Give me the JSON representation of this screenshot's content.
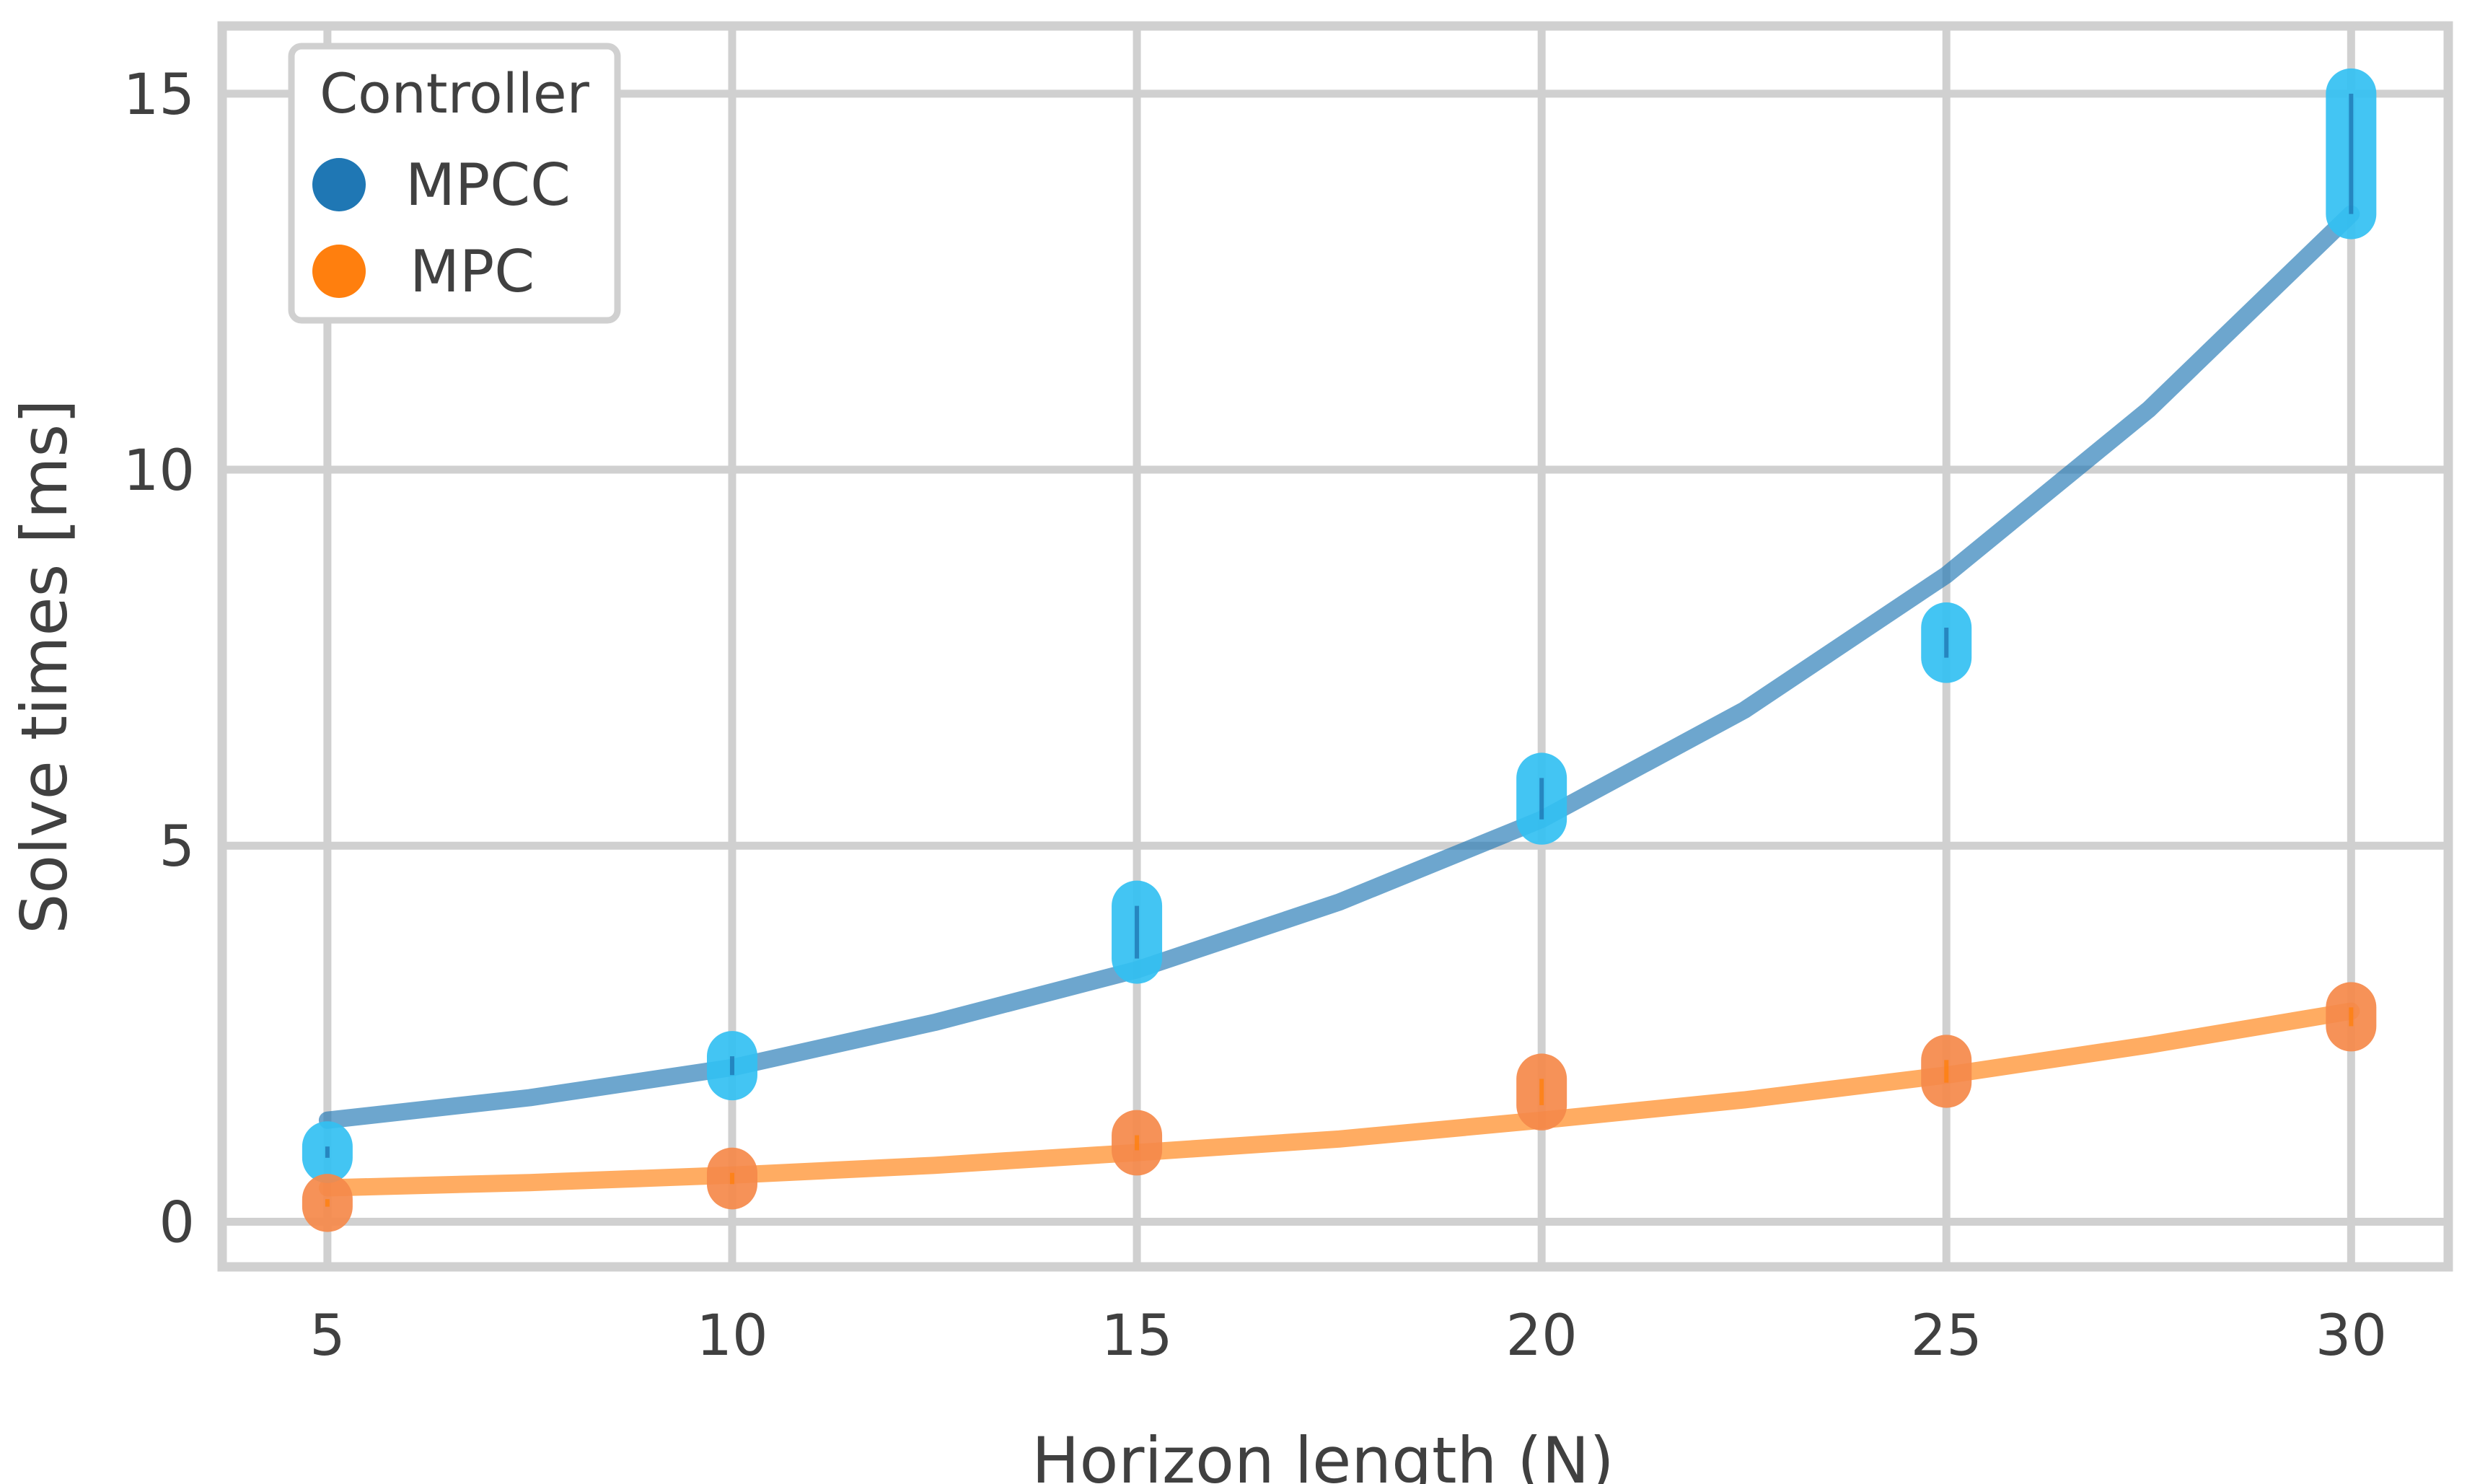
{
  "chart_data": {
    "type": "scatter",
    "xlabel": "Horizon length (N)",
    "ylabel": "Solve times [ms]",
    "xlim": [
      3.7,
      31.2
    ],
    "ylim": [
      -0.6,
      15.9
    ],
    "xticks": [
      "5",
      "10",
      "15",
      "20",
      "25",
      "30"
    ],
    "yticks": [
      "0",
      "5",
      "10",
      "15"
    ],
    "grid": true,
    "legend": {
      "title": "Controller",
      "placement": "top-left"
    },
    "series": [
      {
        "name": "MPCC",
        "color": "#1f77b4",
        "point_color": "#33c0f2",
        "points": [
          {
            "x": 5,
            "min": 0.85,
            "max": 1.0
          },
          {
            "x": 10,
            "min": 1.95,
            "max": 2.2
          },
          {
            "x": 15,
            "min": 3.5,
            "max": 4.2
          },
          {
            "x": 20,
            "min": 5.35,
            "max": 5.9
          },
          {
            "x": 25,
            "min": 7.5,
            "max": 7.9
          },
          {
            "x": 30,
            "min": 13.4,
            "max": 15.0
          }
        ],
        "fit": [
          {
            "x": 5,
            "y": 1.35
          },
          {
            "x": 7.5,
            "y": 1.65
          },
          {
            "x": 10,
            "y": 2.05
          },
          {
            "x": 12.5,
            "y": 2.65
          },
          {
            "x": 15,
            "y": 3.35
          },
          {
            "x": 17.5,
            "y": 4.25
          },
          {
            "x": 20,
            "y": 5.35
          },
          {
            "x": 22.5,
            "y": 6.8
          },
          {
            "x": 25,
            "y": 8.6
          },
          {
            "x": 27.5,
            "y": 10.8
          },
          {
            "x": 30,
            "y": 13.4
          }
        ]
      },
      {
        "name": "MPC",
        "color": "#ff7f0e",
        "point_color": "#f5894a",
        "points": [
          {
            "x": 5,
            "min": 0.2,
            "max": 0.3
          },
          {
            "x": 10,
            "min": 0.5,
            "max": 0.65
          },
          {
            "x": 15,
            "min": 0.95,
            "max": 1.15
          },
          {
            "x": 20,
            "min": 1.55,
            "max": 1.9
          },
          {
            "x": 25,
            "min": 1.85,
            "max": 2.15
          },
          {
            "x": 30,
            "min": 2.6,
            "max": 2.85
          }
        ],
        "fit": [
          {
            "x": 5,
            "y": 0.45
          },
          {
            "x": 7.5,
            "y": 0.52
          },
          {
            "x": 10,
            "y": 0.62
          },
          {
            "x": 12.5,
            "y": 0.75
          },
          {
            "x": 15,
            "y": 0.92
          },
          {
            "x": 17.5,
            "y": 1.1
          },
          {
            "x": 20,
            "y": 1.35
          },
          {
            "x": 22.5,
            "y": 1.62
          },
          {
            "x": 25,
            "y": 1.95
          },
          {
            "x": 27.5,
            "y": 2.35
          },
          {
            "x": 30,
            "y": 2.8
          }
        ]
      }
    ]
  }
}
